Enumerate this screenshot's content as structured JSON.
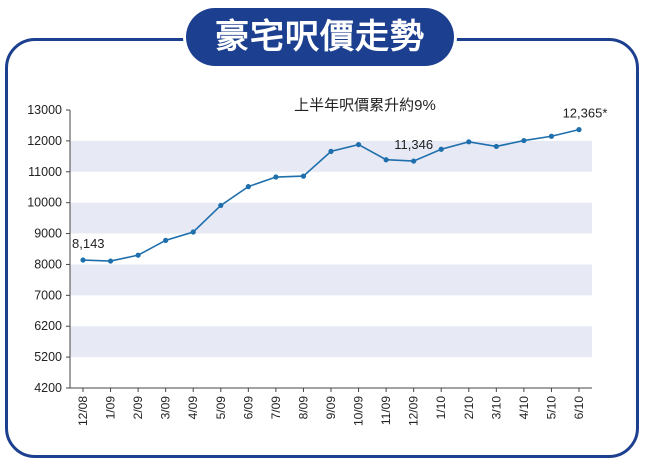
{
  "header": {
    "title": "豪宅呎價走勢"
  },
  "chart_data": {
    "type": "line",
    "subtitle": "上半年呎價累升約9%",
    "categories": [
      "12/08",
      "1/09",
      "2/09",
      "3/09",
      "4/09",
      "5/09",
      "6/09",
      "7/09",
      "8/09",
      "9/09",
      "10/09",
      "11/09",
      "12/09",
      "1/10",
      "2/10",
      "3/10",
      "4/10",
      "5/10",
      "6/10"
    ],
    "values": [
      8143,
      8110,
      8300,
      8780,
      9050,
      9910,
      10520,
      10830,
      10860,
      11660,
      11880,
      11390,
      11346,
      11730,
      11970,
      11820,
      12010,
      12150,
      12365
    ],
    "yticks": [
      13000,
      12000,
      11000,
      10000,
      9000,
      8000,
      7000,
      6200,
      5200,
      4200
    ],
    "annotations": [
      {
        "index": 0,
        "text": "8,143"
      },
      {
        "index": 12,
        "text": "11,346"
      },
      {
        "index": 18,
        "text": "12,365*"
      }
    ],
    "band_color": "#e7eaf5",
    "line_color": "#1f6fad",
    "frame_color": "#1c3f8f"
  }
}
